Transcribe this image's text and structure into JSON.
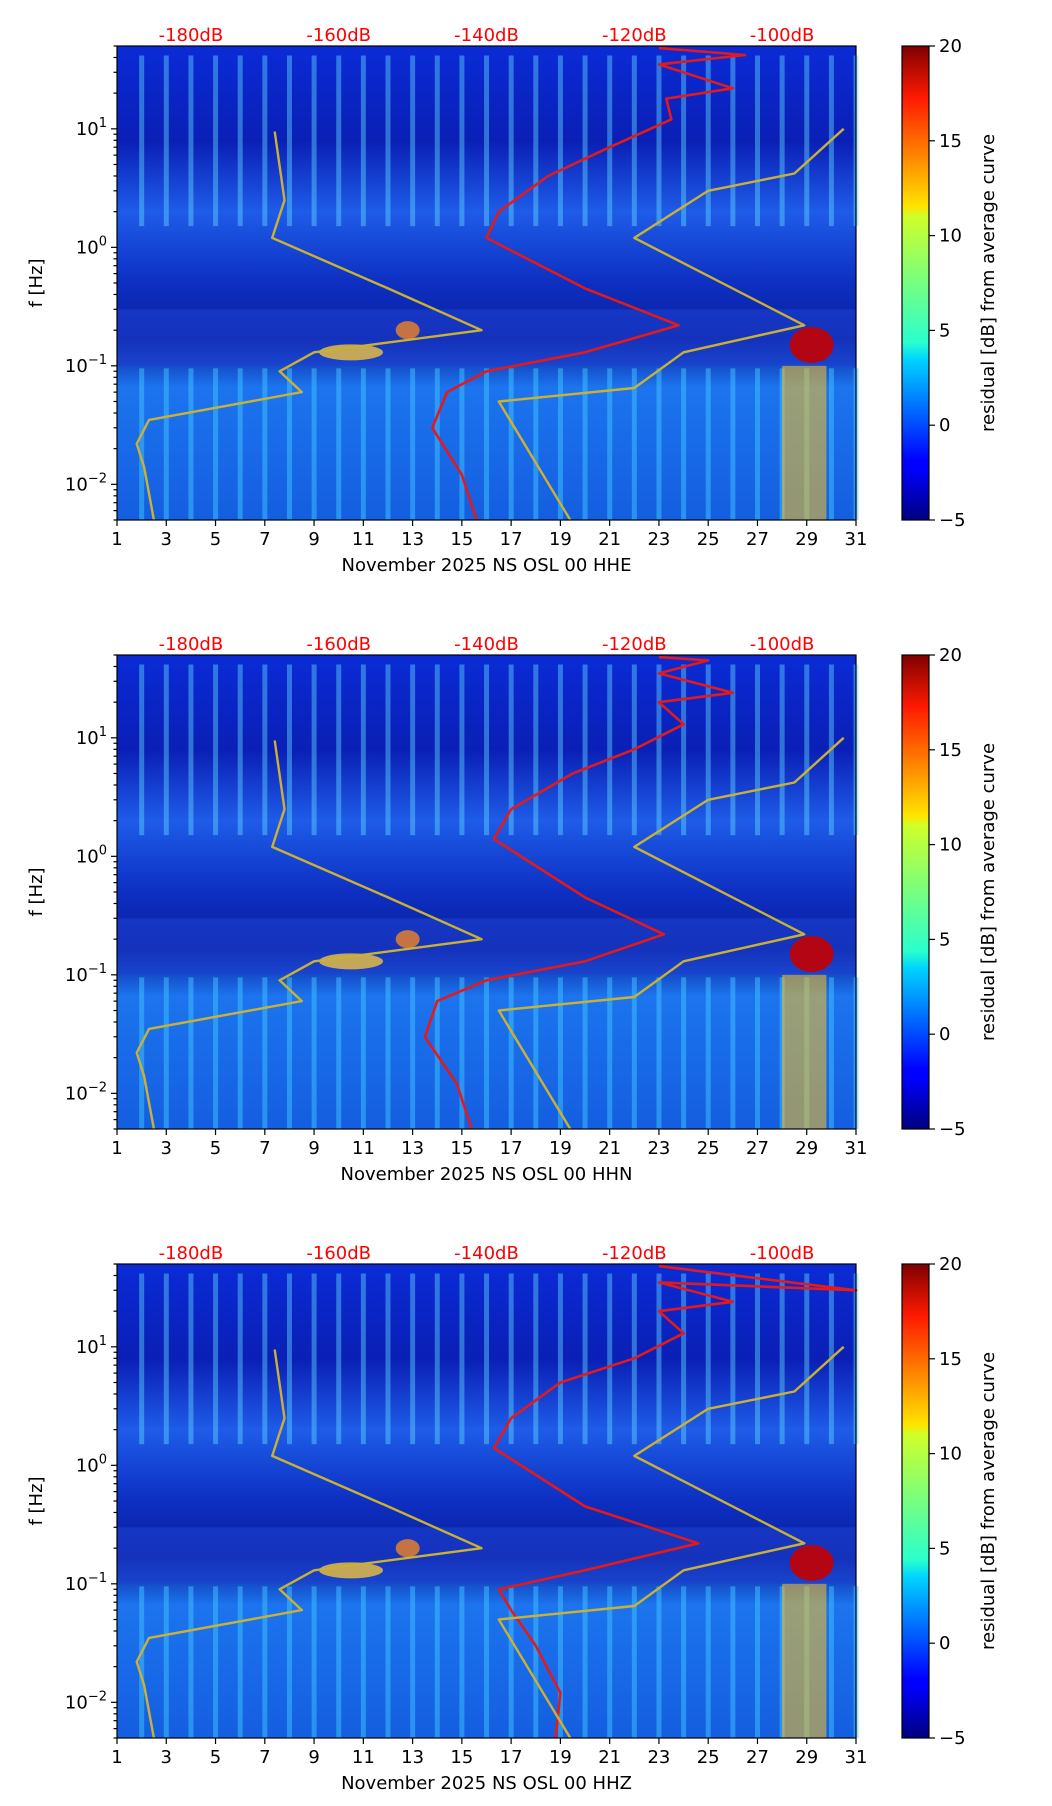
{
  "figure": {
    "width": 1052,
    "height": 1806
  },
  "chart_data": [
    {
      "type": "heatmap",
      "title": "",
      "xlabel": "November 2025 NS OSL 00 HHE",
      "ylabel": "f [Hz]",
      "xlim": [
        1,
        31
      ],
      "xticks": [
        1,
        3,
        5,
        7,
        9,
        11,
        13,
        15,
        17,
        19,
        21,
        23,
        25,
        27,
        29,
        31
      ],
      "yscale": "log",
      "ylim": [
        0.005,
        50
      ],
      "yticks": [
        0.01,
        0.1,
        1,
        10
      ],
      "ytick_labels": [
        [
          "10",
          "−2"
        ],
        [
          "10",
          "−1"
        ],
        [
          "10",
          "0"
        ],
        [
          "10",
          "1"
        ]
      ],
      "top_axis_labels": [
        "-180dB",
        "-160dB",
        "-140dB",
        "-120dB",
        "-100dB"
      ],
      "top_axis_positions": [
        4.0,
        10.0,
        16.0,
        22.0,
        28.0
      ],
      "colorbar": {
        "label": "residual [dB] from average curve",
        "min": -5,
        "max": 20,
        "ticks": [
          -5,
          0,
          5,
          10,
          15,
          20
        ]
      },
      "curves": {
        "average_psd_red": {
          "color": "#e31a1c",
          "points": [
            [
              15.6,
              0.005
            ],
            [
              15.0,
              0.012
            ],
            [
              13.8,
              0.03
            ],
            [
              14.4,
              0.06
            ],
            [
              16.0,
              0.09
            ],
            [
              20.0,
              0.13
            ],
            [
              23.8,
              0.22
            ],
            [
              20.0,
              0.45
            ],
            [
              16.0,
              1.2
            ],
            [
              16.5,
              2.0
            ],
            [
              18.5,
              4.0
            ],
            [
              21.0,
              7.0
            ],
            [
              23.5,
              12.0
            ],
            [
              23.3,
              18.0
            ],
            [
              26.0,
              22.0
            ],
            [
              23.0,
              35.0
            ],
            [
              26.5,
              42.0
            ],
            [
              23.0,
              48.0
            ]
          ]
        },
        "noise_model_yellow_left": {
          "color": "#c9b136",
          "points": [
            [
              2.5,
              0.005
            ],
            [
              2.1,
              0.014
            ],
            [
              1.8,
              0.022
            ],
            [
              2.3,
              0.035
            ],
            [
              8.5,
              0.06
            ],
            [
              7.6,
              0.09
            ],
            [
              9.0,
              0.13
            ],
            [
              15.8,
              0.2
            ],
            [
              12.0,
              0.45
            ],
            [
              7.3,
              1.2
            ],
            [
              7.8,
              2.5
            ],
            [
              7.4,
              9.5
            ]
          ]
        },
        "noise_model_yellow_right": {
          "color": "#c9b136",
          "points": [
            [
              19.4,
              0.005
            ],
            [
              16.5,
              0.05
            ],
            [
              22.0,
              0.065
            ],
            [
              24.0,
              0.13
            ],
            [
              28.9,
              0.22
            ],
            [
              22.0,
              1.2
            ],
            [
              25.0,
              3.0
            ],
            [
              28.5,
              4.2
            ],
            [
              30.5,
              10.0
            ]
          ]
        }
      }
    },
    {
      "type": "heatmap",
      "title": "",
      "xlabel": "November 2025 NS OSL 00 HHN",
      "ylabel": "f [Hz]",
      "xlim": [
        1,
        31
      ],
      "xticks": [
        1,
        3,
        5,
        7,
        9,
        11,
        13,
        15,
        17,
        19,
        21,
        23,
        25,
        27,
        29,
        31
      ],
      "yscale": "log",
      "ylim": [
        0.005,
        50
      ],
      "yticks": [
        0.01,
        0.1,
        1,
        10
      ],
      "ytick_labels": [
        [
          "10",
          "−2"
        ],
        [
          "10",
          "−1"
        ],
        [
          "10",
          "0"
        ],
        [
          "10",
          "1"
        ]
      ],
      "top_axis_labels": [
        "-180dB",
        "-160dB",
        "-140dB",
        "-120dB",
        "-100dB"
      ],
      "top_axis_positions": [
        4.0,
        10.0,
        16.0,
        22.0,
        28.0
      ],
      "colorbar": {
        "label": "residual [dB] from average curve",
        "min": -5,
        "max": 20,
        "ticks": [
          -5,
          0,
          5,
          10,
          15,
          20
        ]
      },
      "curves": {
        "average_psd_red": {
          "color": "#e31a1c",
          "points": [
            [
              15.4,
              0.005
            ],
            [
              14.8,
              0.012
            ],
            [
              13.5,
              0.03
            ],
            [
              14.0,
              0.06
            ],
            [
              16.0,
              0.09
            ],
            [
              20.0,
              0.13
            ],
            [
              23.2,
              0.22
            ],
            [
              20.0,
              0.45
            ],
            [
              16.3,
              1.4
            ],
            [
              17.0,
              2.5
            ],
            [
              19.5,
              5.0
            ],
            [
              22.0,
              8.0
            ],
            [
              24.0,
              13.0
            ],
            [
              23.0,
              20.0
            ],
            [
              26.0,
              24.0
            ],
            [
              23.0,
              35.0
            ],
            [
              25.0,
              45.0
            ],
            [
              23.0,
              48.0
            ]
          ]
        },
        "noise_model_yellow_left": {
          "color": "#c9b136",
          "points": [
            [
              2.5,
              0.005
            ],
            [
              2.1,
              0.014
            ],
            [
              1.8,
              0.022
            ],
            [
              2.3,
              0.035
            ],
            [
              8.5,
              0.06
            ],
            [
              7.6,
              0.09
            ],
            [
              9.0,
              0.13
            ],
            [
              15.8,
              0.2
            ],
            [
              12.0,
              0.45
            ],
            [
              7.3,
              1.2
            ],
            [
              7.8,
              2.5
            ],
            [
              7.4,
              9.5
            ]
          ]
        },
        "noise_model_yellow_right": {
          "color": "#c9b136",
          "points": [
            [
              19.4,
              0.005
            ],
            [
              16.5,
              0.05
            ],
            [
              22.0,
              0.065
            ],
            [
              24.0,
              0.13
            ],
            [
              28.9,
              0.22
            ],
            [
              22.0,
              1.2
            ],
            [
              25.0,
              3.0
            ],
            [
              28.5,
              4.2
            ],
            [
              30.5,
              10.0
            ]
          ]
        }
      }
    },
    {
      "type": "heatmap",
      "title": "",
      "xlabel": "November 2025 NS OSL 00 HHZ",
      "ylabel": "f [Hz]",
      "xlim": [
        1,
        31
      ],
      "xticks": [
        1,
        3,
        5,
        7,
        9,
        11,
        13,
        15,
        17,
        19,
        21,
        23,
        25,
        27,
        29,
        31
      ],
      "yscale": "log",
      "ylim": [
        0.005,
        50
      ],
      "yticks": [
        0.01,
        0.1,
        1,
        10
      ],
      "ytick_labels": [
        [
          "10",
          "−2"
        ],
        [
          "10",
          "−1"
        ],
        [
          "10",
          "0"
        ],
        [
          "10",
          "1"
        ]
      ],
      "top_axis_labels": [
        "-180dB",
        "-160dB",
        "-140dB",
        "-120dB",
        "-100dB"
      ],
      "top_axis_positions": [
        4.0,
        10.0,
        16.0,
        22.0,
        28.0
      ],
      "colorbar": {
        "label": "residual [dB] from average curve",
        "min": -5,
        "max": 20,
        "ticks": [
          -5,
          0,
          5,
          10,
          15,
          20
        ]
      },
      "curves": {
        "average_psd_red": {
          "color": "#e31a1c",
          "points": [
            [
              18.8,
              0.005
            ],
            [
              19.0,
              0.012
            ],
            [
              18.0,
              0.03
            ],
            [
              17.0,
              0.06
            ],
            [
              16.5,
              0.09
            ],
            [
              20.0,
              0.13
            ],
            [
              24.6,
              0.22
            ],
            [
              20.0,
              0.45
            ],
            [
              16.3,
              1.4
            ],
            [
              17.0,
              2.5
            ],
            [
              19.0,
              5.0
            ],
            [
              22.0,
              8.0
            ],
            [
              24.0,
              13.0
            ],
            [
              23.0,
              20.0
            ],
            [
              26.0,
              24.0
            ],
            [
              23.0,
              35.0
            ],
            [
              31.0,
              30.0
            ],
            [
              23.0,
              48.0
            ]
          ]
        },
        "noise_model_yellow_left": {
          "color": "#c9b136",
          "points": [
            [
              2.5,
              0.005
            ],
            [
              2.1,
              0.014
            ],
            [
              1.8,
              0.022
            ],
            [
              2.3,
              0.035
            ],
            [
              8.5,
              0.06
            ],
            [
              7.6,
              0.09
            ],
            [
              9.0,
              0.13
            ],
            [
              15.8,
              0.2
            ],
            [
              12.0,
              0.45
            ],
            [
              7.3,
              1.2
            ],
            [
              7.8,
              2.5
            ],
            [
              7.4,
              9.5
            ]
          ]
        },
        "noise_model_yellow_right": {
          "color": "#c9b136",
          "points": [
            [
              19.4,
              0.005
            ],
            [
              16.5,
              0.05
            ],
            [
              22.0,
              0.065
            ],
            [
              24.0,
              0.13
            ],
            [
              28.9,
              0.22
            ],
            [
              22.0,
              1.2
            ],
            [
              25.0,
              3.0
            ],
            [
              28.5,
              4.2
            ],
            [
              30.5,
              10.0
            ]
          ]
        }
      }
    }
  ]
}
